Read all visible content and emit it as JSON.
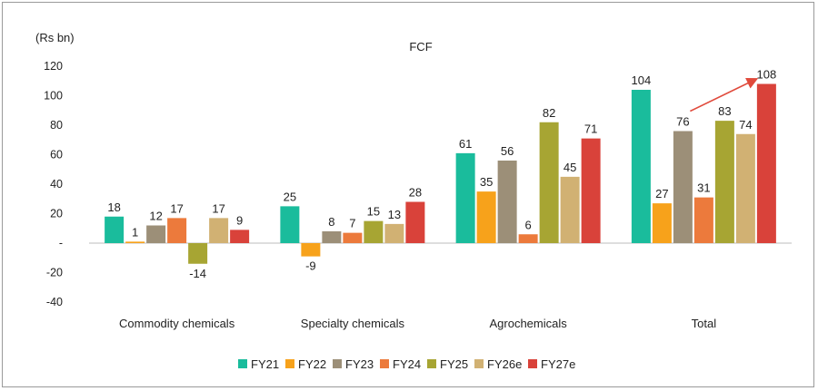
{
  "chart_data": {
    "type": "bar",
    "title": "FCF",
    "ylabel": "(Rs bn)",
    "xlabel": "",
    "ylim": [
      -40,
      120
    ],
    "yticks": [
      120,
      100,
      80,
      60,
      40,
      20,
      0,
      -20,
      -40
    ],
    "ytick_labels": [
      "120",
      "100",
      "80",
      "60",
      "40",
      "20",
      "-",
      "-20",
      "-40"
    ],
    "categories": [
      "Commodity chemicals",
      "Specialty chemicals",
      "Agrochemicals",
      "Total"
    ],
    "series": [
      {
        "name": "FY21",
        "color": "#1ABC9C",
        "values": [
          18,
          25,
          61,
          104
        ]
      },
      {
        "name": "FY22",
        "color": "#F7A21B",
        "values": [
          1,
          -9,
          35,
          27
        ]
      },
      {
        "name": "FY23",
        "color": "#9C8F78",
        "values": [
          12,
          8,
          56,
          76
        ]
      },
      {
        "name": "FY24",
        "color": "#EC7A3C",
        "values": [
          17,
          7,
          6,
          31
        ]
      },
      {
        "name": "FY25",
        "color": "#A7A533",
        "values": [
          -14,
          15,
          82,
          83
        ]
      },
      {
        "name": "FY26e",
        "color": "#D1B173",
        "values": [
          17,
          13,
          45,
          74
        ]
      },
      {
        "name": "FY27e",
        "color": "#D9423A",
        "values": [
          9,
          28,
          71,
          108
        ]
      }
    ],
    "legend": "bottom-center",
    "grid": false,
    "annotations": [
      {
        "type": "arrow",
        "from_series": "FY23",
        "to_series": "FY27e",
        "category": "Total",
        "color": "#E04A3C"
      }
    ]
  }
}
